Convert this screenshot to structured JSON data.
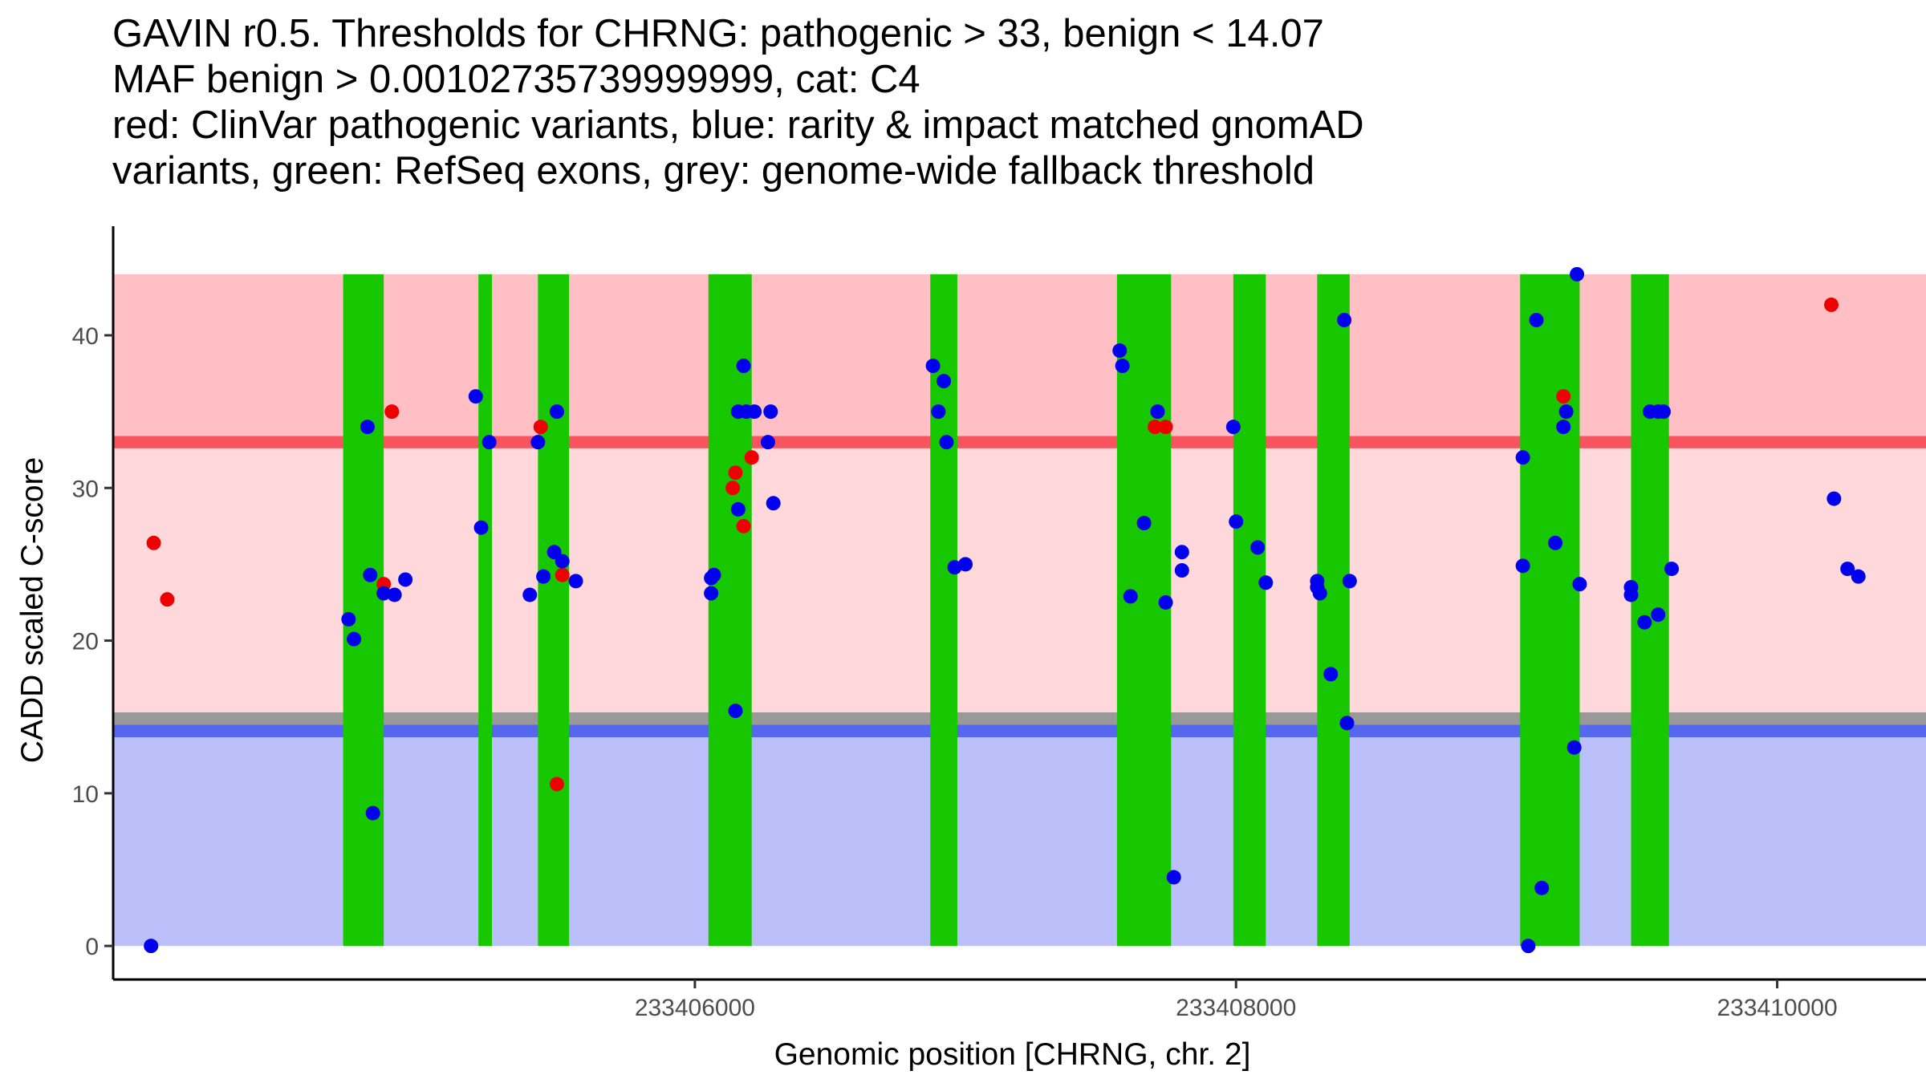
{
  "chart_data": {
    "type": "scatter",
    "title_lines": [
      "GAVIN r0.5. Thresholds for CHRNG: pathogenic > 33, benign < 14.07",
      "MAF benign > 0.00102735739999999, cat: C4",
      "red: ClinVar pathogenic variants, blue: rarity & impact matched gnomAD",
      "variants, green: RefSeq exons, grey: genome-wide fallback threshold"
    ],
    "xlabel": "Genomic position [CHRNG, chr. 2]",
    "ylabel": "CADD scaled C-score",
    "xlim": [
      233403850,
      233410550
    ],
    "ylim": [
      -2.2,
      46.2
    ],
    "x_ticks": [
      233406000,
      233408000,
      233410000
    ],
    "x_tick_labels": [
      "233406000",
      "233408000",
      "233410000"
    ],
    "y_ticks": [
      0,
      10,
      20,
      30,
      40
    ],
    "y_tick_labels": [
      "0",
      "10",
      "20",
      "30",
      "40"
    ],
    "thresholds": {
      "pathogenic": 33,
      "benign": 14.07,
      "fallback_low": 14.5,
      "fallback_high": 15.3,
      "band_max": 44
    },
    "colors": {
      "pathogenic_region": "#ffbfc4",
      "mid_region": "#ffd8dc",
      "benign_region": "#bbbffa",
      "pathogenic_line": "#f7545f",
      "benign_line": "#5566ef",
      "fallback_band": "#999999",
      "exon": "#17c700",
      "clinvar": "#ee0000",
      "gnomad": "#0000ee"
    },
    "exons": [
      [
        233404700,
        233404850
      ],
      [
        233405200,
        233405250
      ],
      [
        233405420,
        233405535
      ],
      [
        233406050,
        233406210
      ],
      [
        233406870,
        233406970
      ],
      [
        233407560,
        233407760
      ],
      [
        233407990,
        233408110
      ],
      [
        233408300,
        233408420
      ],
      [
        233409050,
        233409270
      ],
      [
        233409460,
        233409600
      ]
    ],
    "series": [
      {
        "name": "ClinVar pathogenic variants",
        "color": "clinvar",
        "points": [
          [
            233404000,
            26.4
          ],
          [
            233404050,
            22.7
          ],
          [
            233404880,
            35
          ],
          [
            233404850,
            23.7
          ],
          [
            233405430,
            34
          ],
          [
            233405490,
            10.6
          ],
          [
            233405510,
            24.3
          ],
          [
            233406140,
            30
          ],
          [
            233406150,
            31
          ],
          [
            233406180,
            27.5
          ],
          [
            233406210,
            32
          ],
          [
            233407700,
            34
          ],
          [
            233407740,
            34
          ],
          [
            233409210,
            36
          ],
          [
            233410200,
            42
          ]
        ]
      },
      {
        "name": "rarity & impact matched gnomAD variants",
        "color": "gnomad",
        "points": [
          [
            233403990,
            0
          ],
          [
            233404720,
            21.4
          ],
          [
            233404740,
            20.1
          ],
          [
            233404790,
            34
          ],
          [
            233404800,
            24.3
          ],
          [
            233404810,
            8.7
          ],
          [
            233404850,
            23.1
          ],
          [
            233404890,
            23
          ],
          [
            233404930,
            24
          ],
          [
            233405190,
            36
          ],
          [
            233405210,
            27.4
          ],
          [
            233405240,
            33
          ],
          [
            233405390,
            23
          ],
          [
            233405420,
            33
          ],
          [
            233405440,
            24.2
          ],
          [
            233405480,
            25.8
          ],
          [
            233405490,
            35
          ],
          [
            233405510,
            25.2
          ],
          [
            233405560,
            23.9
          ],
          [
            233406060,
            24.1
          ],
          [
            233406060,
            23.1
          ],
          [
            233406070,
            24.3
          ],
          [
            233406150,
            15.4
          ],
          [
            233406160,
            28.6
          ],
          [
            233406160,
            35
          ],
          [
            233406180,
            38
          ],
          [
            233406190,
            35
          ],
          [
            233406220,
            35
          ],
          [
            233406270,
            33
          ],
          [
            233406280,
            35
          ],
          [
            233406290,
            29
          ],
          [
            233406880,
            38
          ],
          [
            233406900,
            35
          ],
          [
            233406920,
            37
          ],
          [
            233406930,
            33
          ],
          [
            233406960,
            24.8
          ],
          [
            233407000,
            25
          ],
          [
            233407570,
            39
          ],
          [
            233407580,
            38
          ],
          [
            233407610,
            22.9
          ],
          [
            233407660,
            27.7
          ],
          [
            233407710,
            35
          ],
          [
            233407740,
            22.5
          ],
          [
            233407770,
            4.5
          ],
          [
            233407800,
            25.8
          ],
          [
            233407800,
            24.6
          ],
          [
            233407990,
            34
          ],
          [
            233408000,
            27.8
          ],
          [
            233408080,
            26.1
          ],
          [
            233408110,
            23.8
          ],
          [
            233408300,
            23.9
          ],
          [
            233408300,
            23.5
          ],
          [
            233408310,
            23.1
          ],
          [
            233408350,
            17.8
          ],
          [
            233408400,
            41
          ],
          [
            233408410,
            14.6
          ],
          [
            233408420,
            23.9
          ],
          [
            233409060,
            32
          ],
          [
            233409060,
            24.9
          ],
          [
            233409080,
            0
          ],
          [
            233409110,
            41
          ],
          [
            233409130,
            3.8
          ],
          [
            233409180,
            26.4
          ],
          [
            233409210,
            34
          ],
          [
            233409220,
            35
          ],
          [
            233409250,
            13
          ],
          [
            233409260,
            44
          ],
          [
            233409270,
            23.7
          ],
          [
            233409460,
            23.5
          ],
          [
            233409460,
            23
          ],
          [
            233409510,
            21.2
          ],
          [
            233409530,
            35
          ],
          [
            233409560,
            21.7
          ],
          [
            233409560,
            35
          ],
          [
            233409580,
            35
          ],
          [
            233409610,
            24.7
          ],
          [
            233410210,
            29.3
          ],
          [
            233410260,
            24.7
          ],
          [
            233410300,
            24.2
          ]
        ]
      }
    ]
  }
}
